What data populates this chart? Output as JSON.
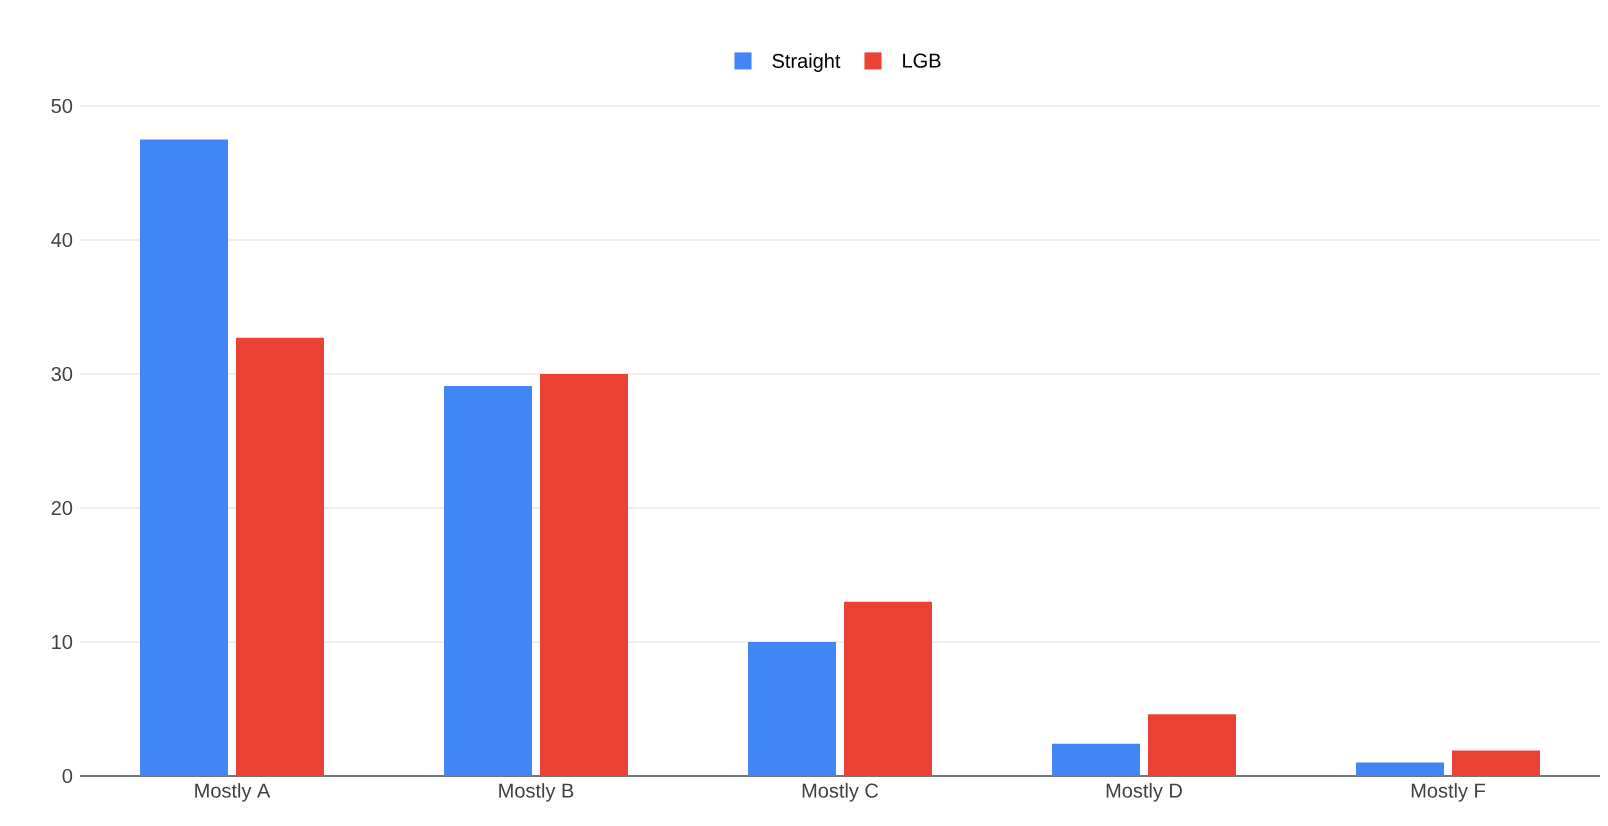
{
  "chart_data": {
    "type": "bar",
    "categories": [
      "Mostly A",
      "Mostly B",
      "Mostly C",
      "Mostly D",
      "Mostly F"
    ],
    "series": [
      {
        "name": "Straight",
        "color": "#4285f4",
        "values": [
          47.5,
          29.1,
          10,
          2.4,
          1
        ]
      },
      {
        "name": "LGB",
        "color": "#ea4335",
        "values": [
          32.7,
          30,
          13,
          4.6,
          1.9
        ]
      }
    ],
    "ylim": [
      0,
      50
    ],
    "yticks": [
      0,
      10,
      20,
      30,
      40,
      50
    ],
    "grid": "y",
    "legend": "top"
  }
}
